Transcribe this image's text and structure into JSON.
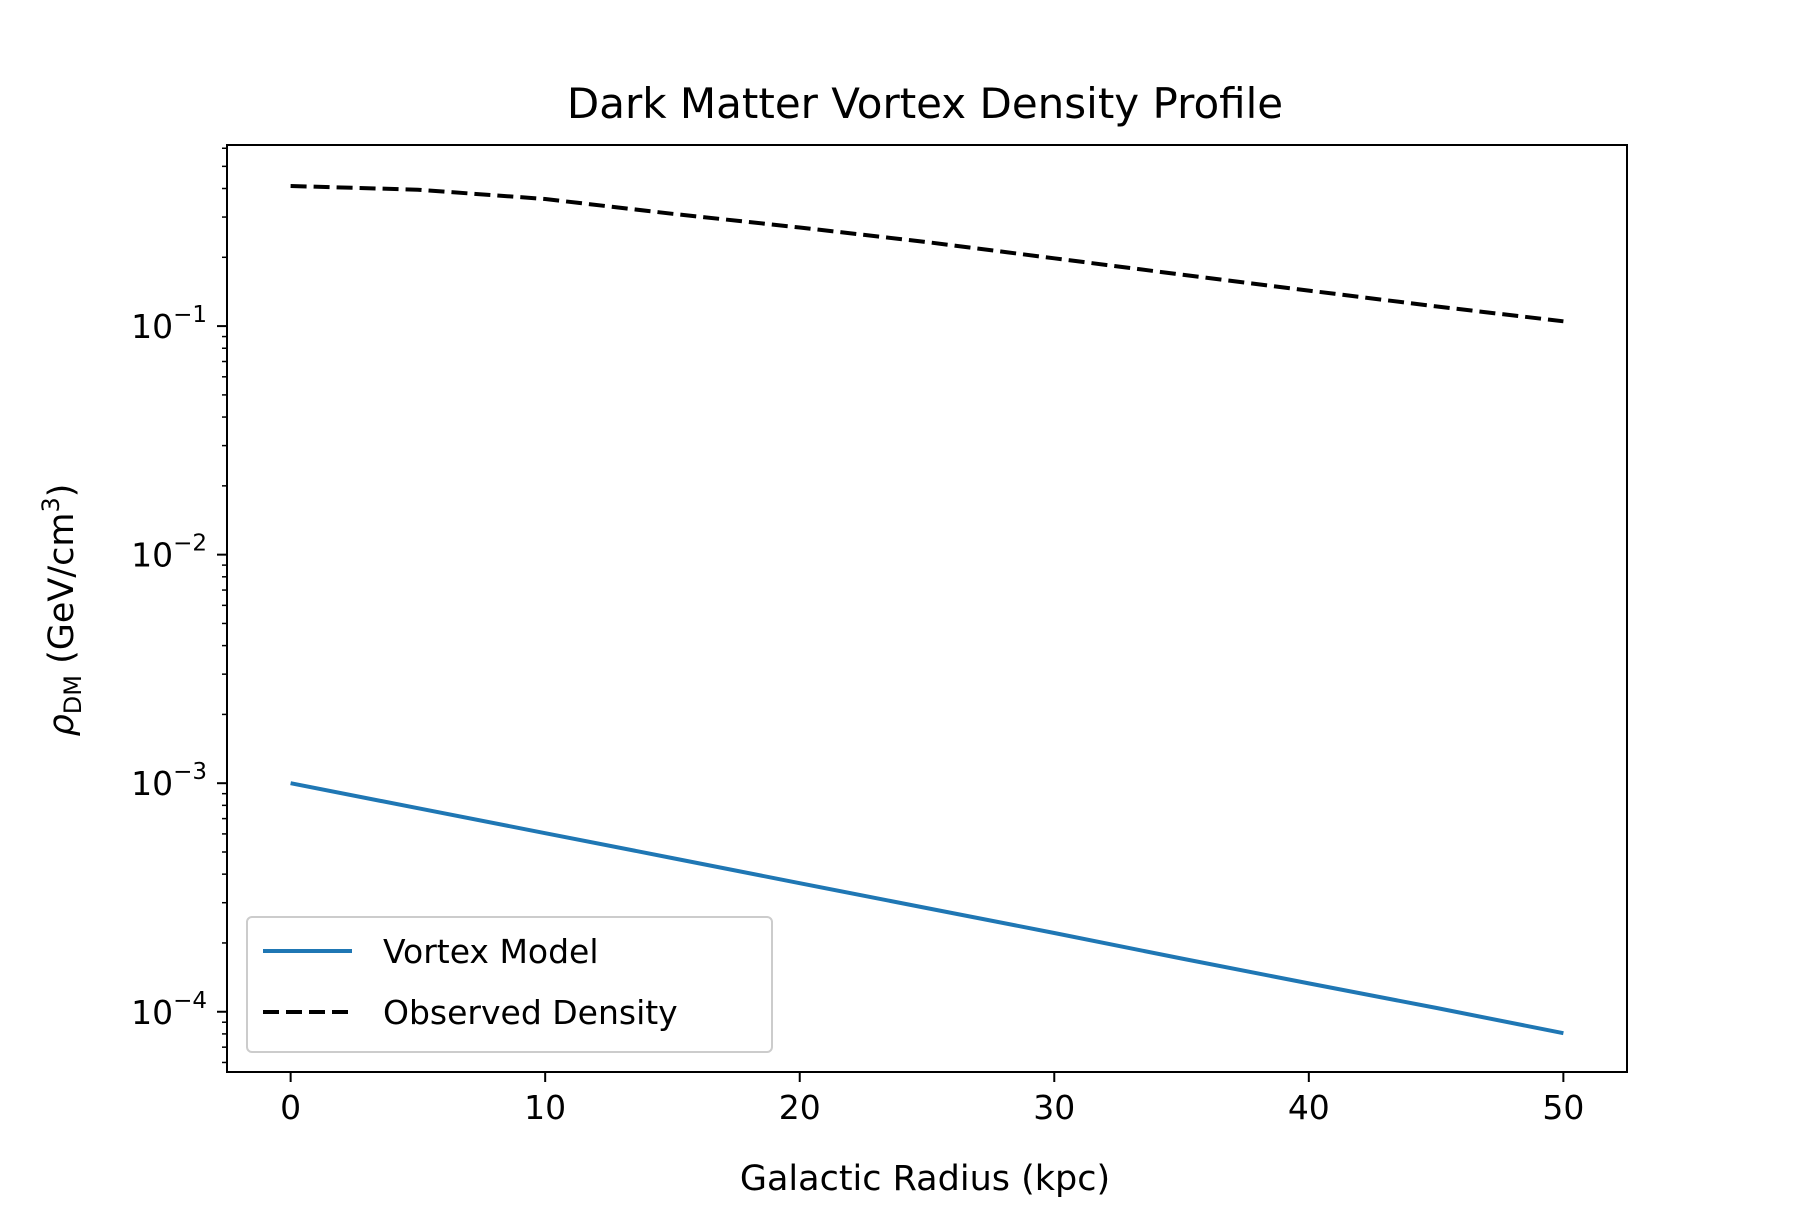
{
  "chart_data": {
    "type": "line",
    "title": "Dark Matter Vortex Density Profile",
    "xlabel": "Galactic Radius (kpc)",
    "ylabel": {
      "symbol": "ρ",
      "subscript": "DM",
      "unit": " (GeV/cm",
      "superscript": "3",
      "close": ")"
    },
    "x_scale": "linear",
    "y_scale": "log",
    "xlim": [
      -2.5,
      52.5
    ],
    "ylim": [
      5.45e-05,
      0.62
    ],
    "x_ticks": [
      0,
      10,
      20,
      30,
      40,
      50
    ],
    "y_ticks": [
      {
        "value": 0.1,
        "base": "10",
        "exp": "−1"
      },
      {
        "value": 0.01,
        "base": "10",
        "exp": "−2"
      },
      {
        "value": 0.001,
        "base": "10",
        "exp": "−3"
      },
      {
        "value": 0.0001,
        "base": "10",
        "exp": "−4"
      }
    ],
    "grid": false,
    "legend_position": "lower-left",
    "series": [
      {
        "name": "Vortex Model",
        "color": "#1f77b4",
        "style": "solid",
        "x": [
          0,
          5,
          10,
          15,
          20,
          25,
          30,
          35,
          40,
          45,
          50
        ],
        "y": [
          0.001,
          0.000777,
          0.000604,
          0.00047,
          0.000365,
          0.000284,
          0.000221,
          0.000171,
          0.000133,
          0.000104,
          8.06e-05
        ]
      },
      {
        "name": "Observed Density",
        "color": "#000000",
        "style": "dashed",
        "x": [
          0,
          5,
          10,
          15,
          20,
          25,
          30,
          35,
          40,
          45,
          50
        ],
        "y": [
          0.41,
          0.395,
          0.36,
          0.31,
          0.27,
          0.233,
          0.198,
          0.168,
          0.143,
          0.122,
          0.105
        ]
      }
    ]
  }
}
